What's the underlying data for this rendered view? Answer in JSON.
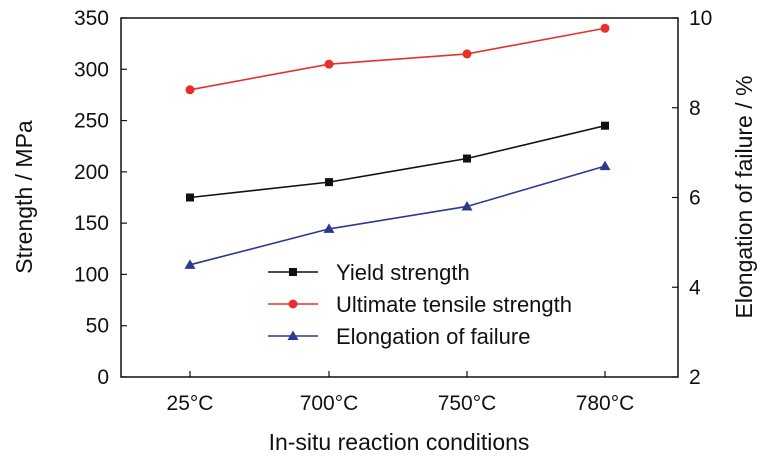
{
  "chart_data": {
    "type": "line",
    "categories": [
      "25°C",
      "700°C",
      "750°C",
      "780°C"
    ],
    "xlabel": "In-situ reaction conditions",
    "ylabel": "Strength / MPa",
    "ylabel_right": "Elongation of failure / %",
    "ylim": [
      0,
      350
    ],
    "yticks": [
      0,
      50,
      100,
      150,
      200,
      250,
      300,
      350
    ],
    "ylim_right": [
      2,
      10
    ],
    "yticks_right": [
      2,
      4,
      6,
      8,
      10
    ],
    "grid": false,
    "legend_position": "bottom-right",
    "series": [
      {
        "name": "Yield strength",
        "axis": "left",
        "marker": "square",
        "color": "#111111",
        "values": [
          175,
          190,
          213,
          245
        ]
      },
      {
        "name": "Ultimate tensile strength",
        "axis": "left",
        "marker": "circle",
        "color": "#e8302a",
        "values": [
          280,
          305,
          315,
          340
        ]
      },
      {
        "name": "Elongation of failure",
        "axis": "right",
        "marker": "triangle",
        "color": "#2b3990",
        "values": [
          4.5,
          5.3,
          5.8,
          6.7
        ]
      }
    ]
  }
}
